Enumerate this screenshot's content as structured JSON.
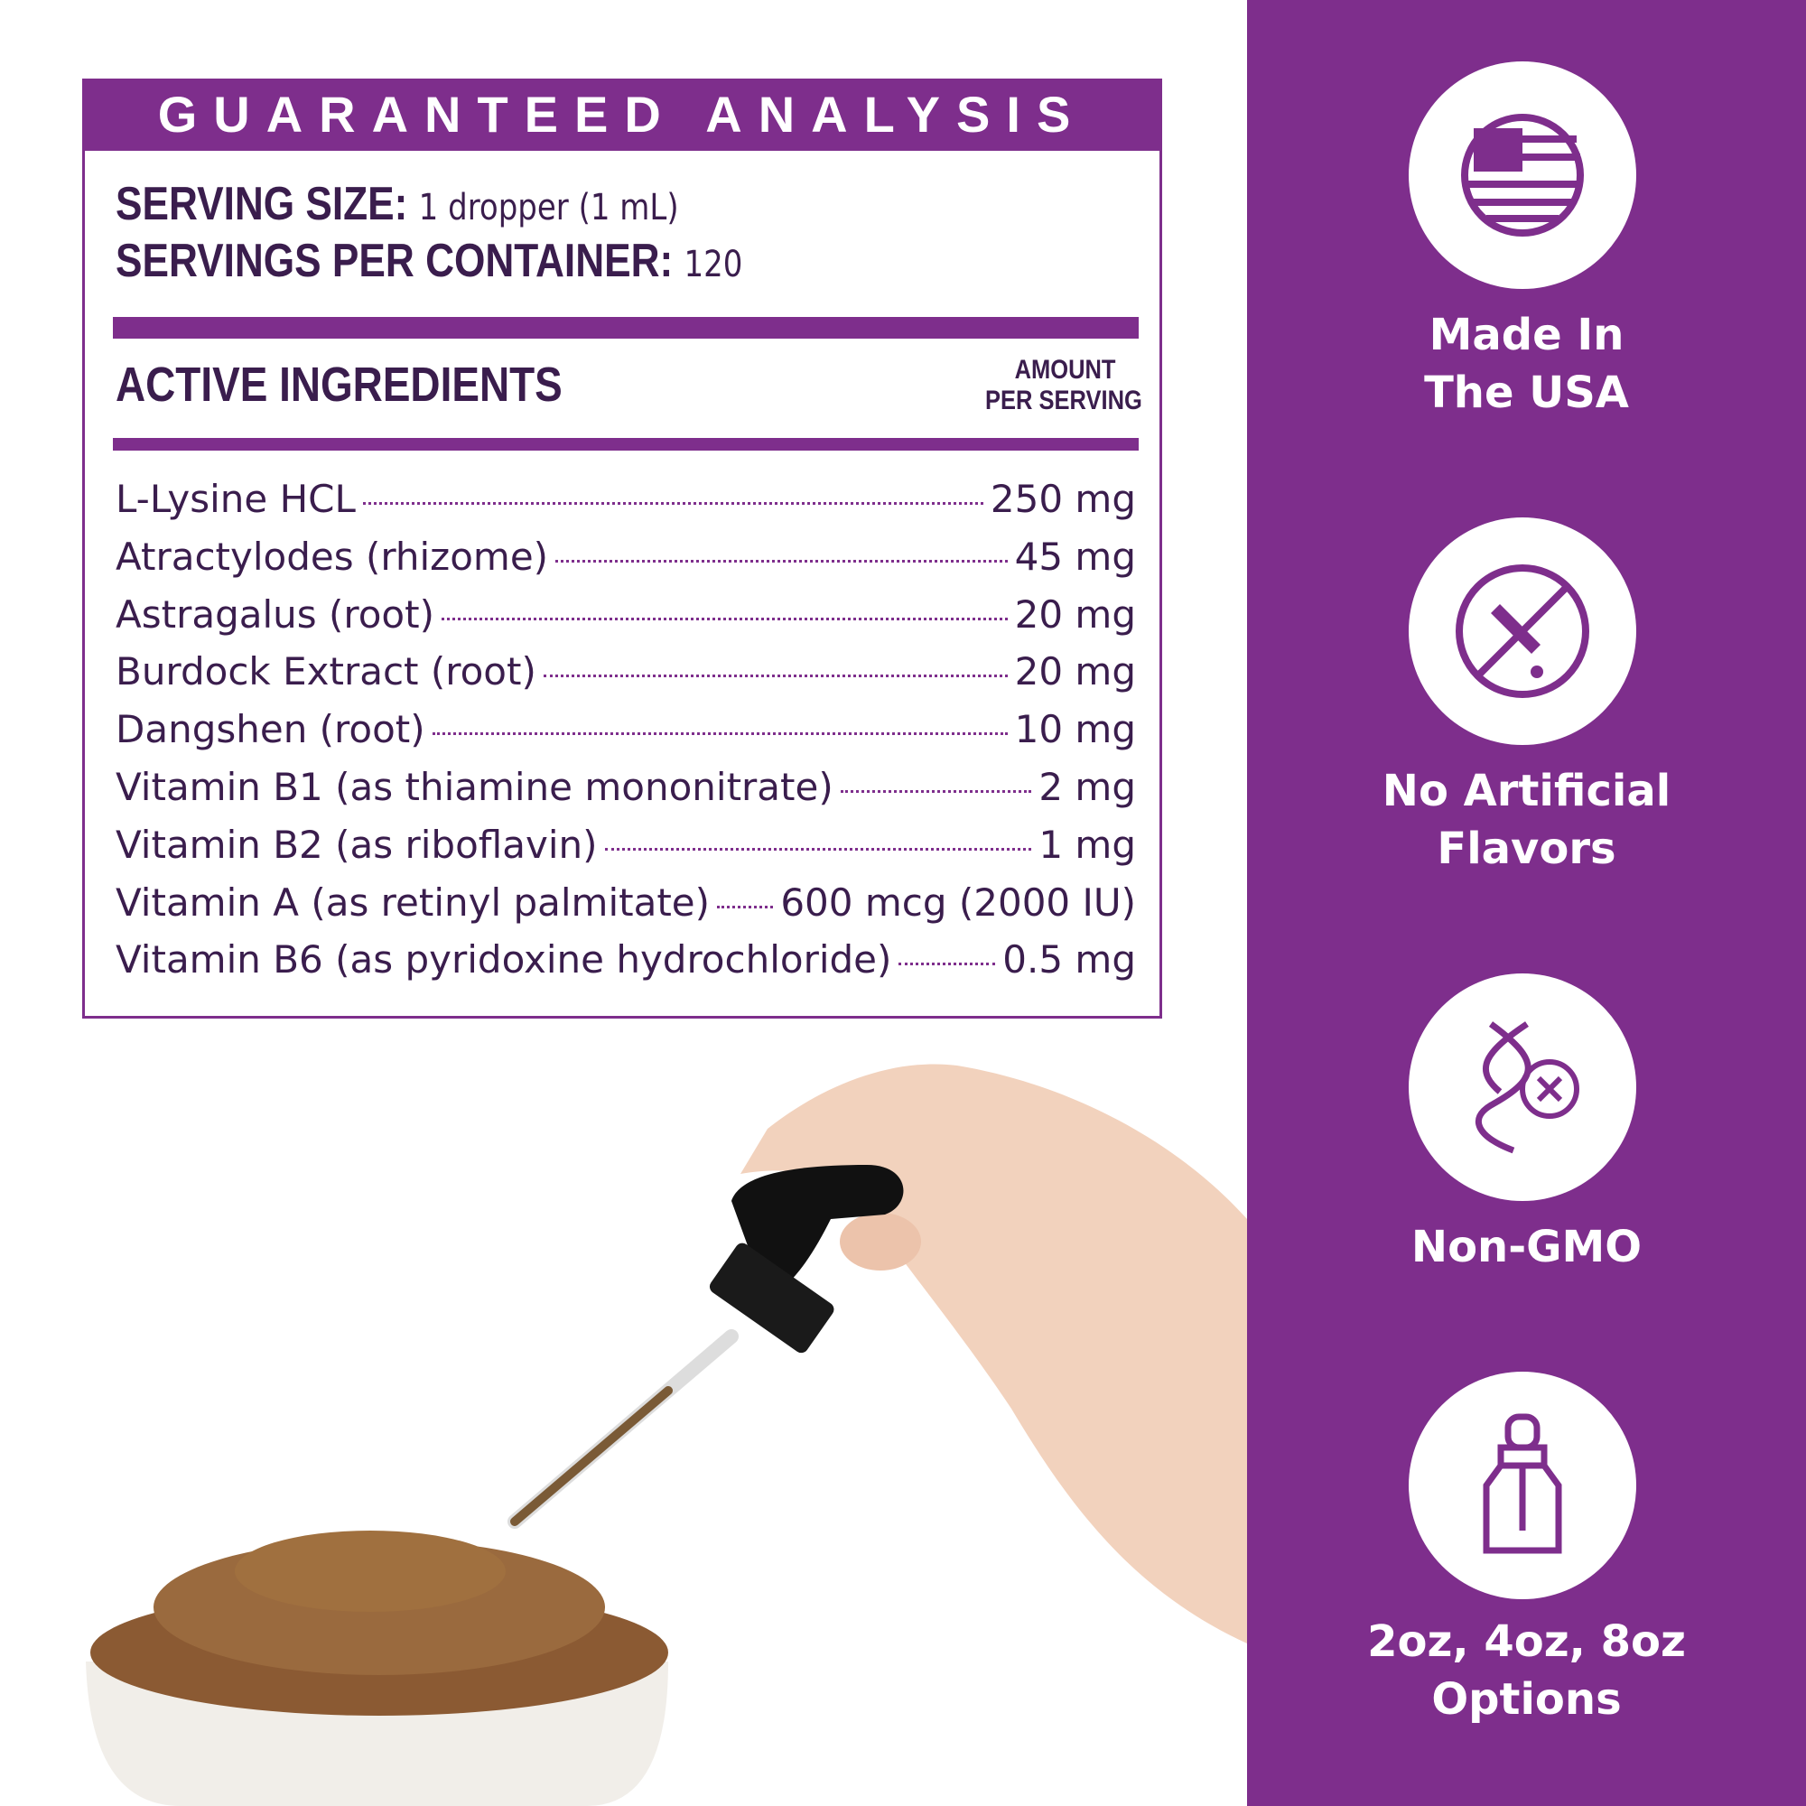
{
  "analysis": {
    "title": "GUARANTEED ANALYSIS",
    "serving_size": {
      "label": "SERVING SIZE:",
      "value": "1 dropper (1 mL)"
    },
    "servings_per_container": {
      "label": "SERVINGS PER CONTAINER:",
      "value": "120"
    },
    "active_heading": "ACTIVE INGREDIENTS",
    "amount_heading": [
      "AMOUNT",
      "PER SERVING"
    ],
    "ingredients": [
      {
        "name": "L-Lysine HCL",
        "amount": "250 mg"
      },
      {
        "name": "Atractylodes (rhizome)",
        "amount": "45 mg"
      },
      {
        "name": "Astragalus (root)",
        "amount": "20 mg"
      },
      {
        "name": "Burdock Extract (root)",
        "amount": "20 mg"
      },
      {
        "name": "Dangshen (root)",
        "amount": "10 mg"
      },
      {
        "name": "Vitamin B1 (as thiamine mononitrate)",
        "amount": "2 mg"
      },
      {
        "name": "Vitamin B2 (as riboflavin)",
        "amount": "1 mg"
      },
      {
        "name": "Vitamin A (as retinyl palmitate)",
        "amount": "600 mcg (2000 IU)"
      },
      {
        "name": "Vitamin B6 (as pyridoxine hydrochloride)",
        "amount": "0.5 mg"
      }
    ]
  },
  "features": [
    {
      "lines": [
        "Made In",
        "The USA"
      ]
    },
    {
      "lines": [
        "No Artificial",
        "Flavors"
      ]
    },
    {
      "lines": [
        "Non-GMO"
      ]
    },
    {
      "lines": [
        "2oz, 4oz, 8oz",
        "Options"
      ]
    }
  ]
}
